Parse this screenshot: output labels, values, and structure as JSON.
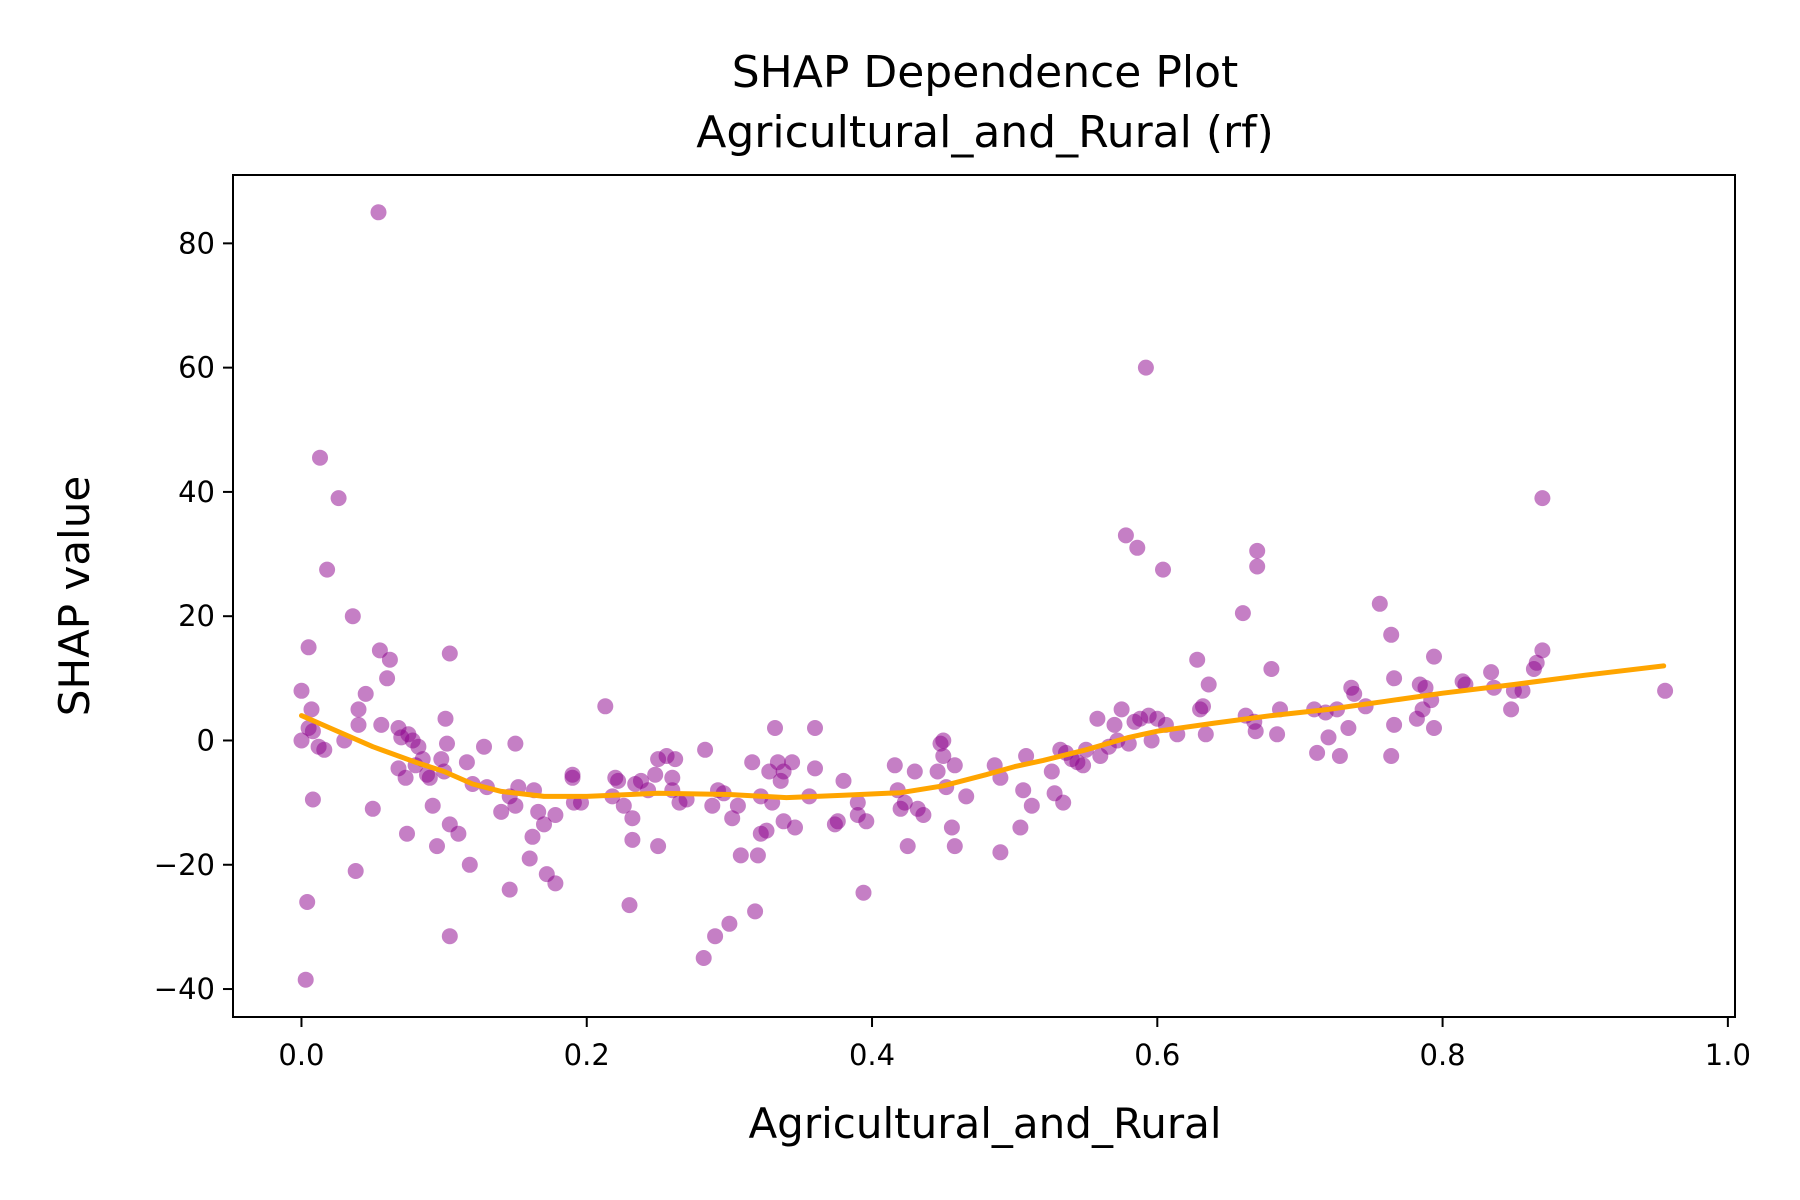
{
  "chart_data": {
    "type": "scatter",
    "title": [
      "SHAP Dependence Plot",
      "Agricultural_and_Rural (rf)"
    ],
    "xlabel": "Agricultural_and_Rural",
    "ylabel": "SHAP value",
    "xlim": [
      -0.048,
      1.005
    ],
    "ylim": [
      -44.5,
      91
    ],
    "xticks": [
      0.0,
      0.2,
      0.4,
      0.6,
      0.8,
      1.0
    ],
    "xtick_labels": [
      "0.0",
      "0.2",
      "0.4",
      "0.6",
      "0.8",
      "1.0"
    ],
    "yticks": [
      -40,
      -20,
      0,
      20,
      40,
      60,
      80
    ],
    "ytick_labels": [
      "−40",
      "−20",
      "0",
      "20",
      "40",
      "60",
      "80"
    ],
    "grid": false,
    "colors": {
      "points": "#8b008b",
      "points_opacity": 0.5,
      "trend": "#ffa500"
    },
    "points": [
      [
        0.0,
        8
      ],
      [
        0.0,
        0
      ],
      [
        0.004,
        -26
      ],
      [
        0.003,
        -38.5
      ],
      [
        0.005,
        15
      ],
      [
        0.005,
        2
      ],
      [
        0.007,
        5
      ],
      [
        0.008,
        1.5
      ],
      [
        0.008,
        -9.5
      ],
      [
        0.012,
        -1
      ],
      [
        0.013,
        45.5
      ],
      [
        0.016,
        -1.5
      ],
      [
        0.018,
        27.5
      ],
      [
        0.026,
        39
      ],
      [
        0.03,
        0
      ],
      [
        0.036,
        20
      ],
      [
        0.038,
        -21
      ],
      [
        0.04,
        2.5
      ],
      [
        0.04,
        5
      ],
      [
        0.045,
        7.5
      ],
      [
        0.05,
        -11
      ],
      [
        0.054,
        85
      ],
      [
        0.055,
        14.5
      ],
      [
        0.056,
        2.5
      ],
      [
        0.06,
        10
      ],
      [
        0.062,
        13
      ],
      [
        0.068,
        2
      ],
      [
        0.068,
        -4.5
      ],
      [
        0.07,
        0.5
      ],
      [
        0.073,
        -6
      ],
      [
        0.074,
        -15
      ],
      [
        0.075,
        1
      ],
      [
        0.078,
        0
      ],
      [
        0.08,
        -4
      ],
      [
        0.082,
        -1
      ],
      [
        0.085,
        -3
      ],
      [
        0.088,
        -5.5
      ],
      [
        0.09,
        -6
      ],
      [
        0.092,
        -10.5
      ],
      [
        0.095,
        -17
      ],
      [
        0.098,
        -3
      ],
      [
        0.1,
        -5
      ],
      [
        0.101,
        3.5
      ],
      [
        0.102,
        -0.5
      ],
      [
        0.104,
        -13.5
      ],
      [
        0.104,
        14
      ],
      [
        0.104,
        -31.5
      ],
      [
        0.11,
        -15
      ],
      [
        0.116,
        -3.5
      ],
      [
        0.118,
        -20
      ],
      [
        0.12,
        -7
      ],
      [
        0.128,
        -1
      ],
      [
        0.13,
        -7.5
      ],
      [
        0.14,
        -11.5
      ],
      [
        0.146,
        -24
      ],
      [
        0.146,
        -9
      ],
      [
        0.15,
        -10.5
      ],
      [
        0.15,
        -0.5
      ],
      [
        0.152,
        -7.5
      ],
      [
        0.16,
        -19
      ],
      [
        0.162,
        -15.5
      ],
      [
        0.163,
        -8
      ],
      [
        0.166,
        -11.5
      ],
      [
        0.17,
        -13.5
      ],
      [
        0.172,
        -21.5
      ],
      [
        0.178,
        -23
      ],
      [
        0.178,
        -12
      ],
      [
        0.19,
        -5.5
      ],
      [
        0.19,
        -6
      ],
      [
        0.191,
        -10
      ],
      [
        0.196,
        -10
      ],
      [
        0.213,
        5.5
      ],
      [
        0.218,
        -9
      ],
      [
        0.22,
        -6
      ],
      [
        0.222,
        -6.5
      ],
      [
        0.226,
        -10.5
      ],
      [
        0.23,
        -26.5
      ],
      [
        0.232,
        -12.5
      ],
      [
        0.232,
        -16
      ],
      [
        0.234,
        -7
      ],
      [
        0.238,
        -6.5
      ],
      [
        0.243,
        -8
      ],
      [
        0.248,
        -5.5
      ],
      [
        0.25,
        -17
      ],
      [
        0.25,
        -3
      ],
      [
        0.256,
        -2.5
      ],
      [
        0.26,
        -8
      ],
      [
        0.26,
        -6
      ],
      [
        0.262,
        -3
      ],
      [
        0.265,
        -10
      ],
      [
        0.27,
        -9.5
      ],
      [
        0.282,
        -35
      ],
      [
        0.283,
        -1.5
      ],
      [
        0.288,
        -10.5
      ],
      [
        0.29,
        -31.5
      ],
      [
        0.292,
        -8
      ],
      [
        0.296,
        -8.5
      ],
      [
        0.3,
        -29.5
      ],
      [
        0.302,
        -12.5
      ],
      [
        0.306,
        -10.5
      ],
      [
        0.308,
        -18.5
      ],
      [
        0.316,
        -3.5
      ],
      [
        0.318,
        -27.5
      ],
      [
        0.32,
        -18.5
      ],
      [
        0.322,
        -9
      ],
      [
        0.322,
        -15
      ],
      [
        0.326,
        -14.5
      ],
      [
        0.328,
        -5
      ],
      [
        0.33,
        -10
      ],
      [
        0.332,
        2
      ],
      [
        0.334,
        -3.5
      ],
      [
        0.336,
        -6.5
      ],
      [
        0.338,
        -5
      ],
      [
        0.338,
        -13
      ],
      [
        0.344,
        -3.5
      ],
      [
        0.346,
        -14
      ],
      [
        0.356,
        -9
      ],
      [
        0.36,
        -4.5
      ],
      [
        0.36,
        2
      ],
      [
        0.374,
        -13.5
      ],
      [
        0.376,
        -13
      ],
      [
        0.38,
        -6.5
      ],
      [
        0.39,
        -10
      ],
      [
        0.39,
        -12
      ],
      [
        0.394,
        -24.5
      ],
      [
        0.396,
        -13
      ],
      [
        0.416,
        -4
      ],
      [
        0.418,
        -8
      ],
      [
        0.42,
        -11
      ],
      [
        0.423,
        -10
      ],
      [
        0.425,
        -17
      ],
      [
        0.43,
        -5
      ],
      [
        0.432,
        -11
      ],
      [
        0.436,
        -12
      ],
      [
        0.446,
        -5
      ],
      [
        0.448,
        -0.5
      ],
      [
        0.45,
        0
      ],
      [
        0.45,
        -2.5
      ],
      [
        0.452,
        -7.5
      ],
      [
        0.456,
        -14
      ],
      [
        0.458,
        -4
      ],
      [
        0.458,
        -17
      ],
      [
        0.466,
        -9
      ],
      [
        0.486,
        -4
      ],
      [
        0.49,
        -18
      ],
      [
        0.49,
        -6
      ],
      [
        0.504,
        -14
      ],
      [
        0.506,
        -8
      ],
      [
        0.508,
        -2.5
      ],
      [
        0.512,
        -10.5
      ],
      [
        0.526,
        -5
      ],
      [
        0.528,
        -8.5
      ],
      [
        0.532,
        -1.5
      ],
      [
        0.534,
        -10
      ],
      [
        0.536,
        -2
      ],
      [
        0.54,
        -3
      ],
      [
        0.544,
        -3.5
      ],
      [
        0.548,
        -4
      ],
      [
        0.55,
        -1.5
      ],
      [
        0.558,
        3.5
      ],
      [
        0.56,
        -2.5
      ],
      [
        0.566,
        -1
      ],
      [
        0.57,
        2.5
      ],
      [
        0.572,
        0
      ],
      [
        0.575,
        5
      ],
      [
        0.578,
        33
      ],
      [
        0.58,
        -0.5
      ],
      [
        0.584,
        3
      ],
      [
        0.586,
        31
      ],
      [
        0.588,
        3.5
      ],
      [
        0.592,
        60
      ],
      [
        0.594,
        4
      ],
      [
        0.596,
        0
      ],
      [
        0.6,
        3.5
      ],
      [
        0.604,
        27.5
      ],
      [
        0.606,
        2.5
      ],
      [
        0.614,
        1
      ],
      [
        0.628,
        13
      ],
      [
        0.63,
        5
      ],
      [
        0.632,
        5.5
      ],
      [
        0.634,
        1
      ],
      [
        0.636,
        9
      ],
      [
        0.66,
        20.5
      ],
      [
        0.662,
        4
      ],
      [
        0.668,
        3
      ],
      [
        0.669,
        1.5
      ],
      [
        0.67,
        30.5
      ],
      [
        0.67,
        28
      ],
      [
        0.68,
        11.5
      ],
      [
        0.684,
        1
      ],
      [
        0.686,
        5
      ],
      [
        0.71,
        5
      ],
      [
        0.712,
        -2
      ],
      [
        0.718,
        4.5
      ],
      [
        0.72,
        0.5
      ],
      [
        0.726,
        5
      ],
      [
        0.728,
        -2.5
      ],
      [
        0.734,
        2
      ],
      [
        0.736,
        8.5
      ],
      [
        0.738,
        7.5
      ],
      [
        0.746,
        5.5
      ],
      [
        0.756,
        22
      ],
      [
        0.764,
        17
      ],
      [
        0.764,
        -2.5
      ],
      [
        0.766,
        10
      ],
      [
        0.766,
        2.5
      ],
      [
        0.782,
        3.5
      ],
      [
        0.784,
        9
      ],
      [
        0.786,
        5
      ],
      [
        0.788,
        8.5
      ],
      [
        0.792,
        6.5
      ],
      [
        0.794,
        2
      ],
      [
        0.794,
        13.5
      ],
      [
        0.814,
        9.5
      ],
      [
        0.816,
        9
      ],
      [
        0.834,
        11
      ],
      [
        0.836,
        8.5
      ],
      [
        0.848,
        5
      ],
      [
        0.85,
        8
      ],
      [
        0.856,
        8
      ],
      [
        0.864,
        11.5
      ],
      [
        0.866,
        12.5
      ],
      [
        0.87,
        14.5
      ],
      [
        0.87,
        39
      ],
      [
        0.956,
        8
      ]
    ],
    "trend": [
      [
        0.0,
        4
      ],
      [
        0.02,
        2
      ],
      [
        0.05,
        -1
      ],
      [
        0.08,
        -3.5
      ],
      [
        0.1,
        -5
      ],
      [
        0.12,
        -7
      ],
      [
        0.14,
        -8.2
      ],
      [
        0.17,
        -9
      ],
      [
        0.2,
        -9
      ],
      [
        0.25,
        -8.5
      ],
      [
        0.3,
        -8.7
      ],
      [
        0.34,
        -9.2
      ],
      [
        0.38,
        -8.8
      ],
      [
        0.42,
        -8.4
      ],
      [
        0.45,
        -7.3
      ],
      [
        0.48,
        -5.5
      ],
      [
        0.5,
        -4.2
      ],
      [
        0.52,
        -3.2
      ],
      [
        0.55,
        -1.5
      ],
      [
        0.58,
        0.5
      ],
      [
        0.6,
        1.5
      ],
      [
        0.64,
        2.8
      ],
      [
        0.68,
        4
      ],
      [
        0.72,
        5
      ],
      [
        0.76,
        6.3
      ],
      [
        0.8,
        7.6
      ],
      [
        0.85,
        9
      ],
      [
        0.9,
        10.5
      ],
      [
        0.955,
        12
      ]
    ]
  }
}
